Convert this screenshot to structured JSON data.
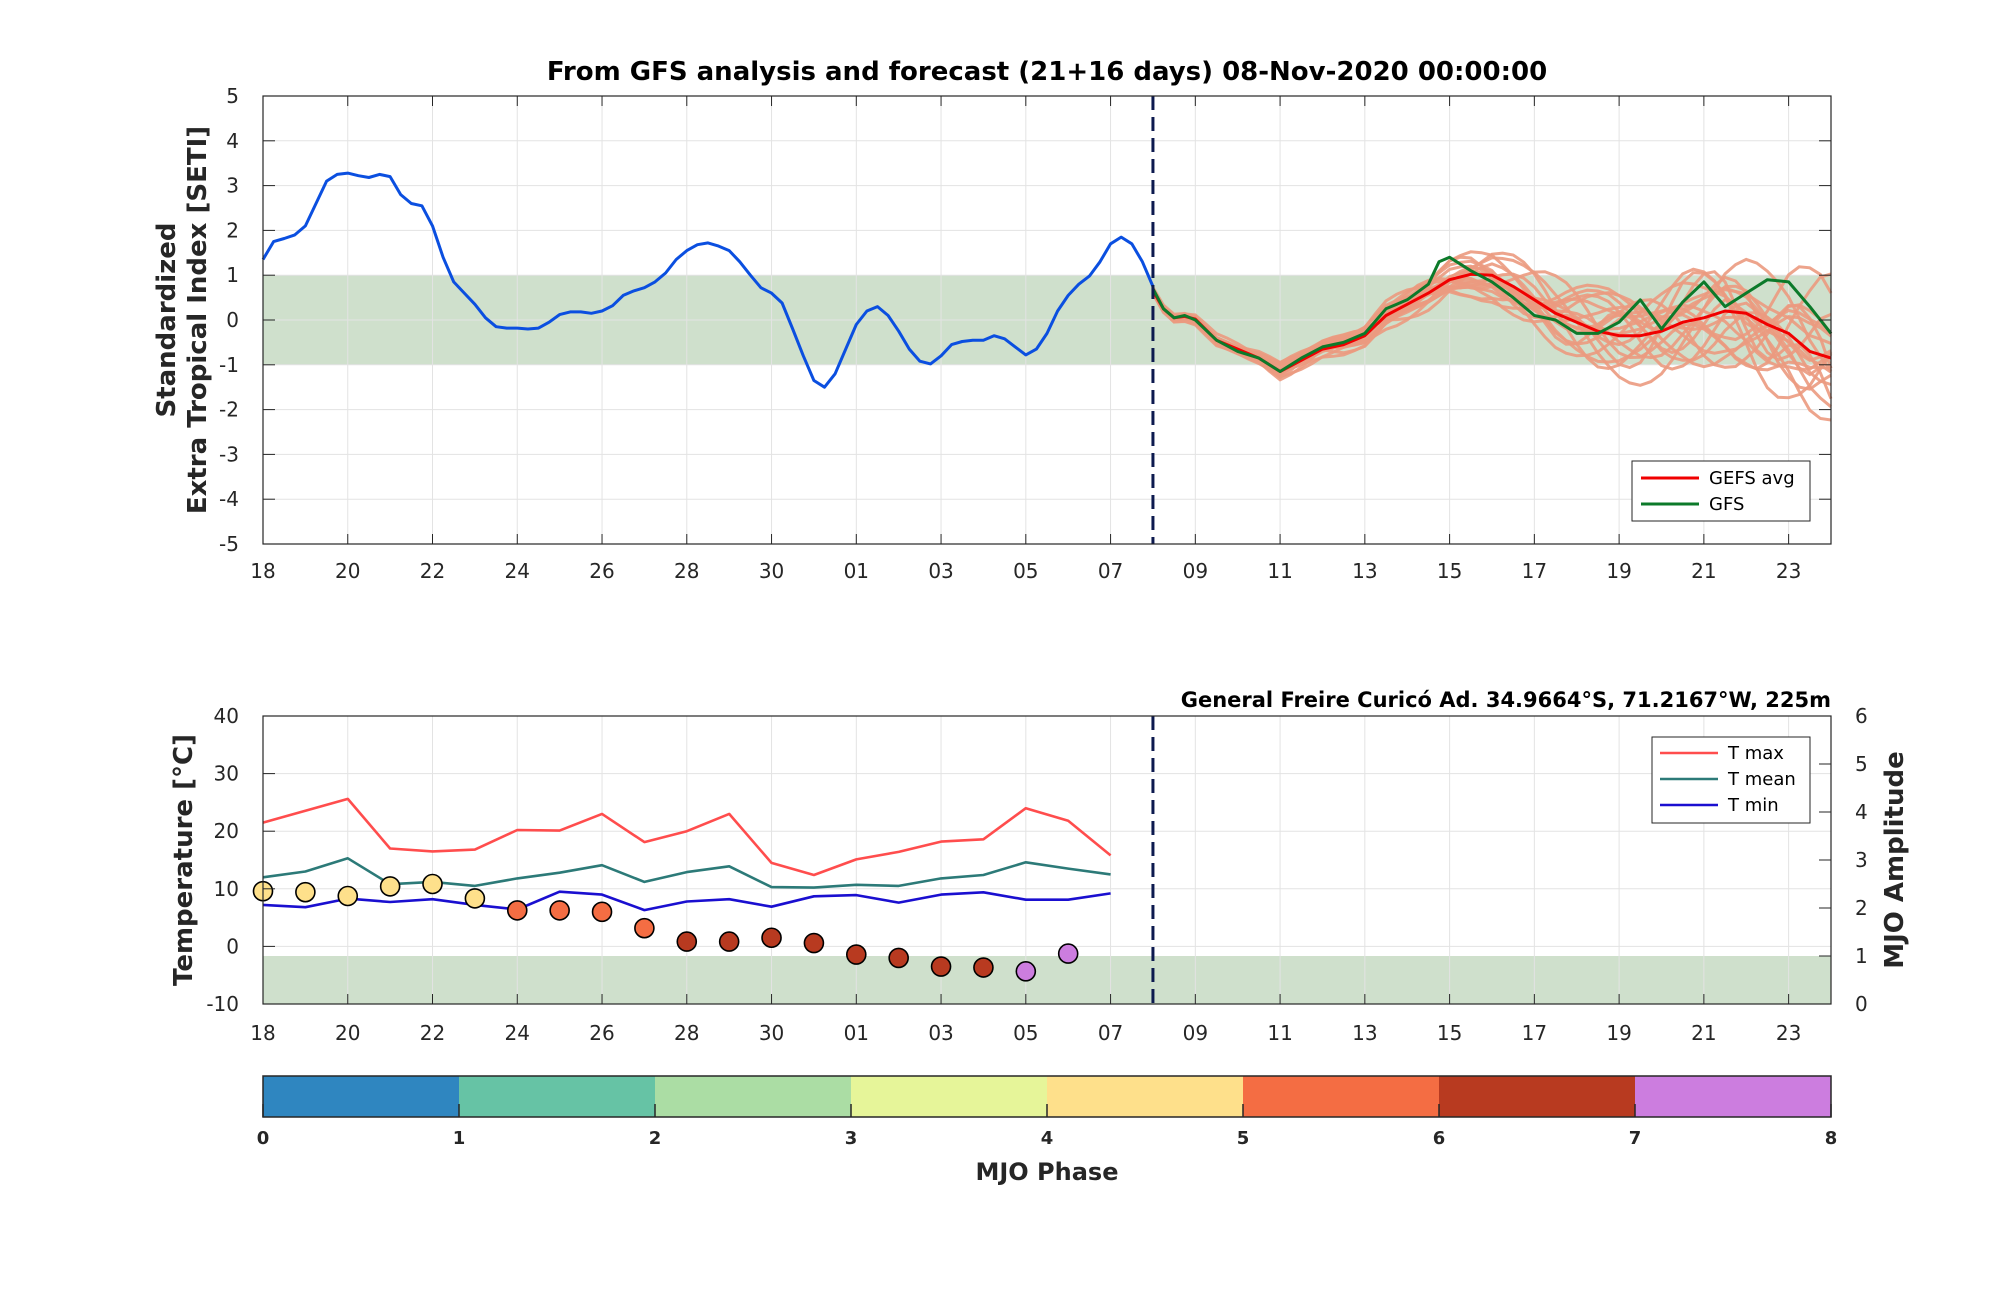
{
  "colors": {
    "history": "#0b4fe0",
    "gefs_avg": "#f00000",
    "gfs": "#0c7a2a",
    "members": "#eb9a80",
    "band": "#cfe0cc",
    "t_max": "#ff4d4d",
    "t_mean": "#2c7a78",
    "t_min": "#1a0fd0",
    "divider": "#0d1a4f"
  },
  "chart_data": [
    {
      "type": "line",
      "title": "From GFS analysis and forecast (21+16 days) 08-Nov-2020 00:00:00",
      "ylabel_lines": [
        "Standardized",
        "Extra Tropical Index [SETI]"
      ],
      "xlabel": "",
      "x_unit": "days since 18-Oct-2020",
      "xlim": [
        0,
        37
      ],
      "ylim": [
        -5,
        5
      ],
      "yticks": [
        -5,
        -4,
        -3,
        -2,
        -1,
        0,
        1,
        2,
        3,
        4,
        5
      ],
      "xtick_positions": [
        0,
        2,
        4,
        6,
        8,
        10,
        12,
        14,
        16,
        18,
        20,
        22,
        24,
        26,
        28,
        30,
        32,
        34,
        36
      ],
      "xtick_labels": [
        "18",
        "20",
        "22",
        "24",
        "26",
        "28",
        "30",
        "01",
        "03",
        "05",
        "07",
        "09",
        "11",
        "13",
        "15",
        "17",
        "19",
        "21",
        "23"
      ],
      "grid": true,
      "shaded_band": [
        -1,
        1
      ],
      "forecast_start": 21,
      "legend": {
        "position": "bottom-right",
        "items": [
          {
            "label": "GEFS avg",
            "color_key": "gefs_avg"
          },
          {
            "label": "GFS",
            "color_key": "gfs"
          }
        ]
      },
      "series": [
        {
          "role": "analysis",
          "points": [
            [
              0,
              1.35
            ],
            [
              0.25,
              1.75
            ],
            [
              0.5,
              1.82
            ],
            [
              0.75,
              1.9
            ],
            [
              1,
              2.1
            ],
            [
              1.25,
              2.6
            ],
            [
              1.5,
              3.1
            ],
            [
              1.75,
              3.25
            ],
            [
              2,
              3.28
            ],
            [
              2.25,
              3.22
            ],
            [
              2.5,
              3.18
            ],
            [
              2.75,
              3.25
            ],
            [
              3,
              3.2
            ],
            [
              3.25,
              2.8
            ],
            [
              3.5,
              2.6
            ],
            [
              3.75,
              2.55
            ],
            [
              4,
              2.1
            ],
            [
              4.25,
              1.4
            ],
            [
              4.5,
              0.85
            ],
            [
              4.75,
              0.6
            ],
            [
              5,
              0.35
            ],
            [
              5.25,
              0.05
            ],
            [
              5.5,
              -0.15
            ],
            [
              5.75,
              -0.18
            ],
            [
              6,
              -0.18
            ],
            [
              6.25,
              -0.2
            ],
            [
              6.5,
              -0.18
            ],
            [
              6.75,
              -0.05
            ],
            [
              7,
              0.12
            ],
            [
              7.25,
              0.18
            ],
            [
              7.5,
              0.18
            ],
            [
              7.75,
              0.15
            ],
            [
              8,
              0.2
            ],
            [
              8.25,
              0.32
            ],
            [
              8.5,
              0.55
            ],
            [
              8.75,
              0.65
            ],
            [
              9,
              0.72
            ],
            [
              9.25,
              0.85
            ],
            [
              9.5,
              1.05
            ],
            [
              9.75,
              1.35
            ],
            [
              10,
              1.55
            ],
            [
              10.25,
              1.68
            ],
            [
              10.5,
              1.72
            ],
            [
              10.75,
              1.65
            ],
            [
              11,
              1.55
            ],
            [
              11.25,
              1.3
            ],
            [
              11.5,
              1.0
            ],
            [
              11.75,
              0.72
            ],
            [
              12,
              0.6
            ],
            [
              12.25,
              0.38
            ],
            [
              12.5,
              -0.2
            ],
            [
              12.75,
              -0.8
            ],
            [
              13,
              -1.35
            ],
            [
              13.25,
              -1.5
            ],
            [
              13.5,
              -1.2
            ],
            [
              13.75,
              -0.65
            ],
            [
              14,
              -0.1
            ],
            [
              14.25,
              0.2
            ],
            [
              14.5,
              0.3
            ],
            [
              14.75,
              0.1
            ],
            [
              15,
              -0.25
            ],
            [
              15.25,
              -0.65
            ],
            [
              15.5,
              -0.92
            ],
            [
              15.75,
              -0.98
            ],
            [
              16,
              -0.8
            ],
            [
              16.25,
              -0.55
            ],
            [
              16.5,
              -0.48
            ],
            [
              16.75,
              -0.45
            ],
            [
              17,
              -0.45
            ],
            [
              17.25,
              -0.35
            ],
            [
              17.5,
              -0.42
            ],
            [
              17.75,
              -0.6
            ],
            [
              18,
              -0.78
            ],
            [
              18.25,
              -0.65
            ],
            [
              18.5,
              -0.3
            ],
            [
              18.75,
              0.2
            ],
            [
              19,
              0.55
            ],
            [
              19.25,
              0.8
            ],
            [
              19.5,
              0.98
            ],
            [
              19.75,
              1.3
            ],
            [
              20,
              1.7
            ],
            [
              20.25,
              1.85
            ],
            [
              20.5,
              1.7
            ],
            [
              20.75,
              1.3
            ],
            [
              21,
              0.75
            ]
          ]
        },
        {
          "name": "GEFS avg",
          "points": [
            [
              21,
              0.65
            ],
            [
              21.25,
              0.25
            ],
            [
              21.5,
              0.05
            ],
            [
              21.75,
              0.08
            ],
            [
              22,
              0.02
            ],
            [
              22.5,
              -0.45
            ],
            [
              23,
              -0.65
            ],
            [
              23.5,
              -0.85
            ],
            [
              24,
              -1.15
            ],
            [
              24.5,
              -0.9
            ],
            [
              25,
              -0.65
            ],
            [
              25.5,
              -0.55
            ],
            [
              26,
              -0.35
            ],
            [
              26.5,
              0.1
            ],
            [
              27,
              0.35
            ],
            [
              27.5,
              0.6
            ],
            [
              28,
              0.9
            ],
            [
              28.5,
              1.02
            ],
            [
              29,
              1.0
            ],
            [
              29.5,
              0.75
            ],
            [
              30,
              0.45
            ],
            [
              30.5,
              0.15
            ],
            [
              31,
              -0.05
            ],
            [
              31.5,
              -0.25
            ],
            [
              32,
              -0.35
            ],
            [
              32.5,
              -0.35
            ],
            [
              33,
              -0.25
            ],
            [
              33.5,
              -0.05
            ],
            [
              34,
              0.05
            ],
            [
              34.5,
              0.2
            ],
            [
              35,
              0.15
            ],
            [
              35.5,
              -0.1
            ],
            [
              36,
              -0.3
            ],
            [
              36.5,
              -0.7
            ],
            [
              37,
              -0.85
            ]
          ]
        },
        {
          "name": "GFS",
          "points": [
            [
              21,
              0.7
            ],
            [
              21.25,
              0.25
            ],
            [
              21.5,
              0.05
            ],
            [
              21.75,
              0.1
            ],
            [
              22,
              0.0
            ],
            [
              22.5,
              -0.45
            ],
            [
              23,
              -0.7
            ],
            [
              23.5,
              -0.85
            ],
            [
              24,
              -1.15
            ],
            [
              24.5,
              -0.85
            ],
            [
              25,
              -0.6
            ],
            [
              25.5,
              -0.5
            ],
            [
              26,
              -0.3
            ],
            [
              26.5,
              0.25
            ],
            [
              27,
              0.45
            ],
            [
              27.5,
              0.8
            ],
            [
              27.75,
              1.3
            ],
            [
              28,
              1.4
            ],
            [
              28.5,
              1.1
            ],
            [
              29,
              0.85
            ],
            [
              29.5,
              0.5
            ],
            [
              30,
              0.1
            ],
            [
              30.5,
              0.0
            ],
            [
              31,
              -0.3
            ],
            [
              31.5,
              -0.3
            ],
            [
              32,
              -0.05
            ],
            [
              32.5,
              0.45
            ],
            [
              33,
              -0.2
            ],
            [
              33.5,
              0.4
            ],
            [
              34,
              0.85
            ],
            [
              34.5,
              0.3
            ],
            [
              35,
              0.6
            ],
            [
              35.5,
              0.9
            ],
            [
              36,
              0.85
            ],
            [
              36.5,
              0.3
            ],
            [
              37,
              -0.3
            ]
          ]
        }
      ]
    },
    {
      "type": "line",
      "station": "General Freire Curicó Ad. 34.9664°S, 71.2167°W, 225m",
      "ylabel": "Temperature [°C]",
      "y2label": "MJO Amplitude",
      "xlabel": "",
      "x_unit": "days since 18-Oct-2020",
      "xlim": [
        0,
        37
      ],
      "ylim": [
        -10,
        40
      ],
      "y2lim": [
        0,
        6
      ],
      "yticks": [
        -10,
        0,
        10,
        20,
        30,
        40
      ],
      "y2ticks": [
        0,
        1,
        2,
        3,
        4,
        5,
        6
      ],
      "xtick_positions": [
        0,
        2,
        4,
        6,
        8,
        10,
        12,
        14,
        16,
        18,
        20,
        22,
        24,
        26,
        28,
        30,
        32,
        34,
        36
      ],
      "xtick_labels": [
        "18",
        "20",
        "22",
        "24",
        "26",
        "28",
        "30",
        "01",
        "03",
        "05",
        "07",
        "09",
        "11",
        "13",
        "15",
        "17",
        "19",
        "21",
        "23"
      ],
      "grid": true,
      "shaded_band_y2": [
        0,
        1
      ],
      "forecast_start": 21,
      "legend": {
        "position": "top-right",
        "items": [
          {
            "label": "T max",
            "color_key": "t_max"
          },
          {
            "label": "T mean",
            "color_key": "t_mean"
          },
          {
            "label": "T min",
            "color_key": "t_min"
          }
        ]
      },
      "series": [
        {
          "name": "T max",
          "x": [
            0,
            2,
            3,
            4,
            5,
            6,
            7,
            8,
            9,
            10,
            11,
            12,
            13,
            14,
            15,
            16,
            17,
            18,
            19,
            20
          ],
          "values": [
            21.5,
            25.6,
            17.0,
            16.5,
            16.8,
            20.2,
            20.1,
            23.0,
            18.1,
            20.0,
            23.0,
            14.5,
            12.4,
            15.1,
            16.4,
            18.2,
            18.6,
            24.0,
            21.8,
            15.8
          ]
        },
        {
          "name": "T mean",
          "x": [
            0,
            1,
            2,
            3,
            4,
            5,
            6,
            7,
            8,
            9,
            10,
            11,
            12,
            13,
            14,
            15,
            16,
            17,
            18,
            19,
            20
          ],
          "values": [
            12.0,
            13.0,
            15.3,
            10.8,
            11.2,
            10.5,
            11.8,
            12.8,
            14.1,
            11.2,
            12.9,
            13.9,
            10.3,
            10.2,
            10.7,
            10.5,
            11.8,
            12.4,
            14.6,
            13.5,
            12.5
          ]
        },
        {
          "name": "T min",
          "x": [
            0,
            1,
            2,
            3,
            4,
            5,
            6,
            7,
            8,
            9,
            10,
            11,
            12,
            13,
            14,
            15,
            16,
            17,
            18,
            19,
            20
          ],
          "values": [
            7.2,
            6.8,
            8.3,
            7.7,
            8.2,
            7.2,
            6.4,
            9.5,
            9.0,
            6.3,
            7.8,
            8.2,
            6.9,
            8.7,
            8.9,
            7.6,
            9.0,
            9.4,
            8.1,
            8.1,
            9.2
          ]
        }
      ],
      "mjo": {
        "x": [
          0,
          1,
          2,
          3,
          4,
          5,
          6,
          7,
          8,
          9,
          10,
          11,
          12,
          13,
          14,
          15,
          16,
          17,
          18,
          19
        ],
        "amplitude": [
          2.35,
          2.33,
          2.25,
          2.45,
          2.5,
          2.2,
          1.95,
          1.95,
          1.92,
          1.58,
          1.3,
          1.3,
          1.38,
          1.27,
          1.03,
          0.96,
          0.78,
          0.76,
          0.68,
          1.05
        ],
        "phase": [
          4,
          4,
          4,
          4,
          4,
          4,
          5,
          5,
          5,
          5,
          6,
          6,
          6,
          6,
          6,
          6,
          6,
          6,
          7,
          7
        ]
      }
    }
  ],
  "colorbar": {
    "title": "MJO Phase",
    "ticks": [
      "0",
      "1",
      "2",
      "3",
      "4",
      "5",
      "6",
      "7",
      "8"
    ],
    "colors": [
      "#2f86c0",
      "#66c3a5",
      "#abdda4",
      "#e6f599",
      "#fee08b",
      "#f46d43",
      "#b83a20",
      "#cc7ddf"
    ]
  }
}
